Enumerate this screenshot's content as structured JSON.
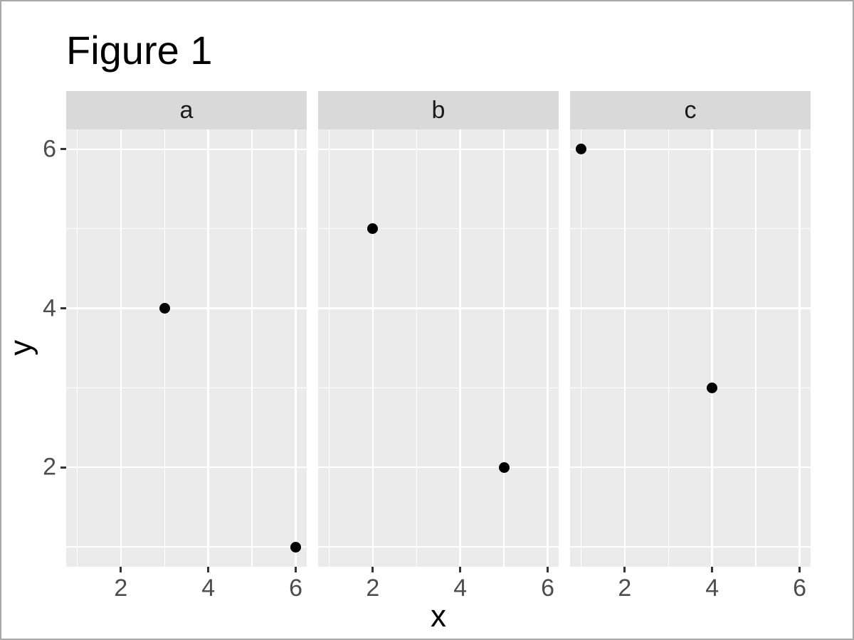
{
  "title": "Figure 1",
  "axes": {
    "x_title": "x",
    "y_title": "y"
  },
  "chart_data": {
    "type": "scatter",
    "title": "Figure 1",
    "xlabel": "x",
    "ylabel": "y",
    "facet_labels": [
      "a",
      "b",
      "c"
    ],
    "facets": [
      {
        "label": "a",
        "points": [
          {
            "x": 3,
            "y": 4
          },
          {
            "x": 6,
            "y": 1
          }
        ]
      },
      {
        "label": "b",
        "points": [
          {
            "x": 2,
            "y": 5
          },
          {
            "x": 5,
            "y": 2
          }
        ]
      },
      {
        "label": "c",
        "points": [
          {
            "x": 1,
            "y": 6
          },
          {
            "x": 4,
            "y": 3
          }
        ]
      }
    ],
    "x_ticks": [
      2,
      4,
      6
    ],
    "y_ticks": [
      2,
      4,
      6
    ],
    "x_minor_gridlines": [
      1,
      3,
      5
    ],
    "y_minor_gridlines": [
      1,
      3,
      5
    ],
    "xlim": [
      0.75,
      6.25
    ],
    "ylim": [
      0.75,
      6.25
    ],
    "grid": "on",
    "legend": "none",
    "colors": {
      "panel_bg": "#ebebeb",
      "strip_bg": "#d9d9d9",
      "gridline": "#ffffff",
      "point": "#000000",
      "tick_mark": "#333333",
      "tick_label": "#4d4d4d",
      "strip_text": "#1a1a1a",
      "axis_title": "#000000",
      "frame_border": "#a9a9a9"
    }
  }
}
